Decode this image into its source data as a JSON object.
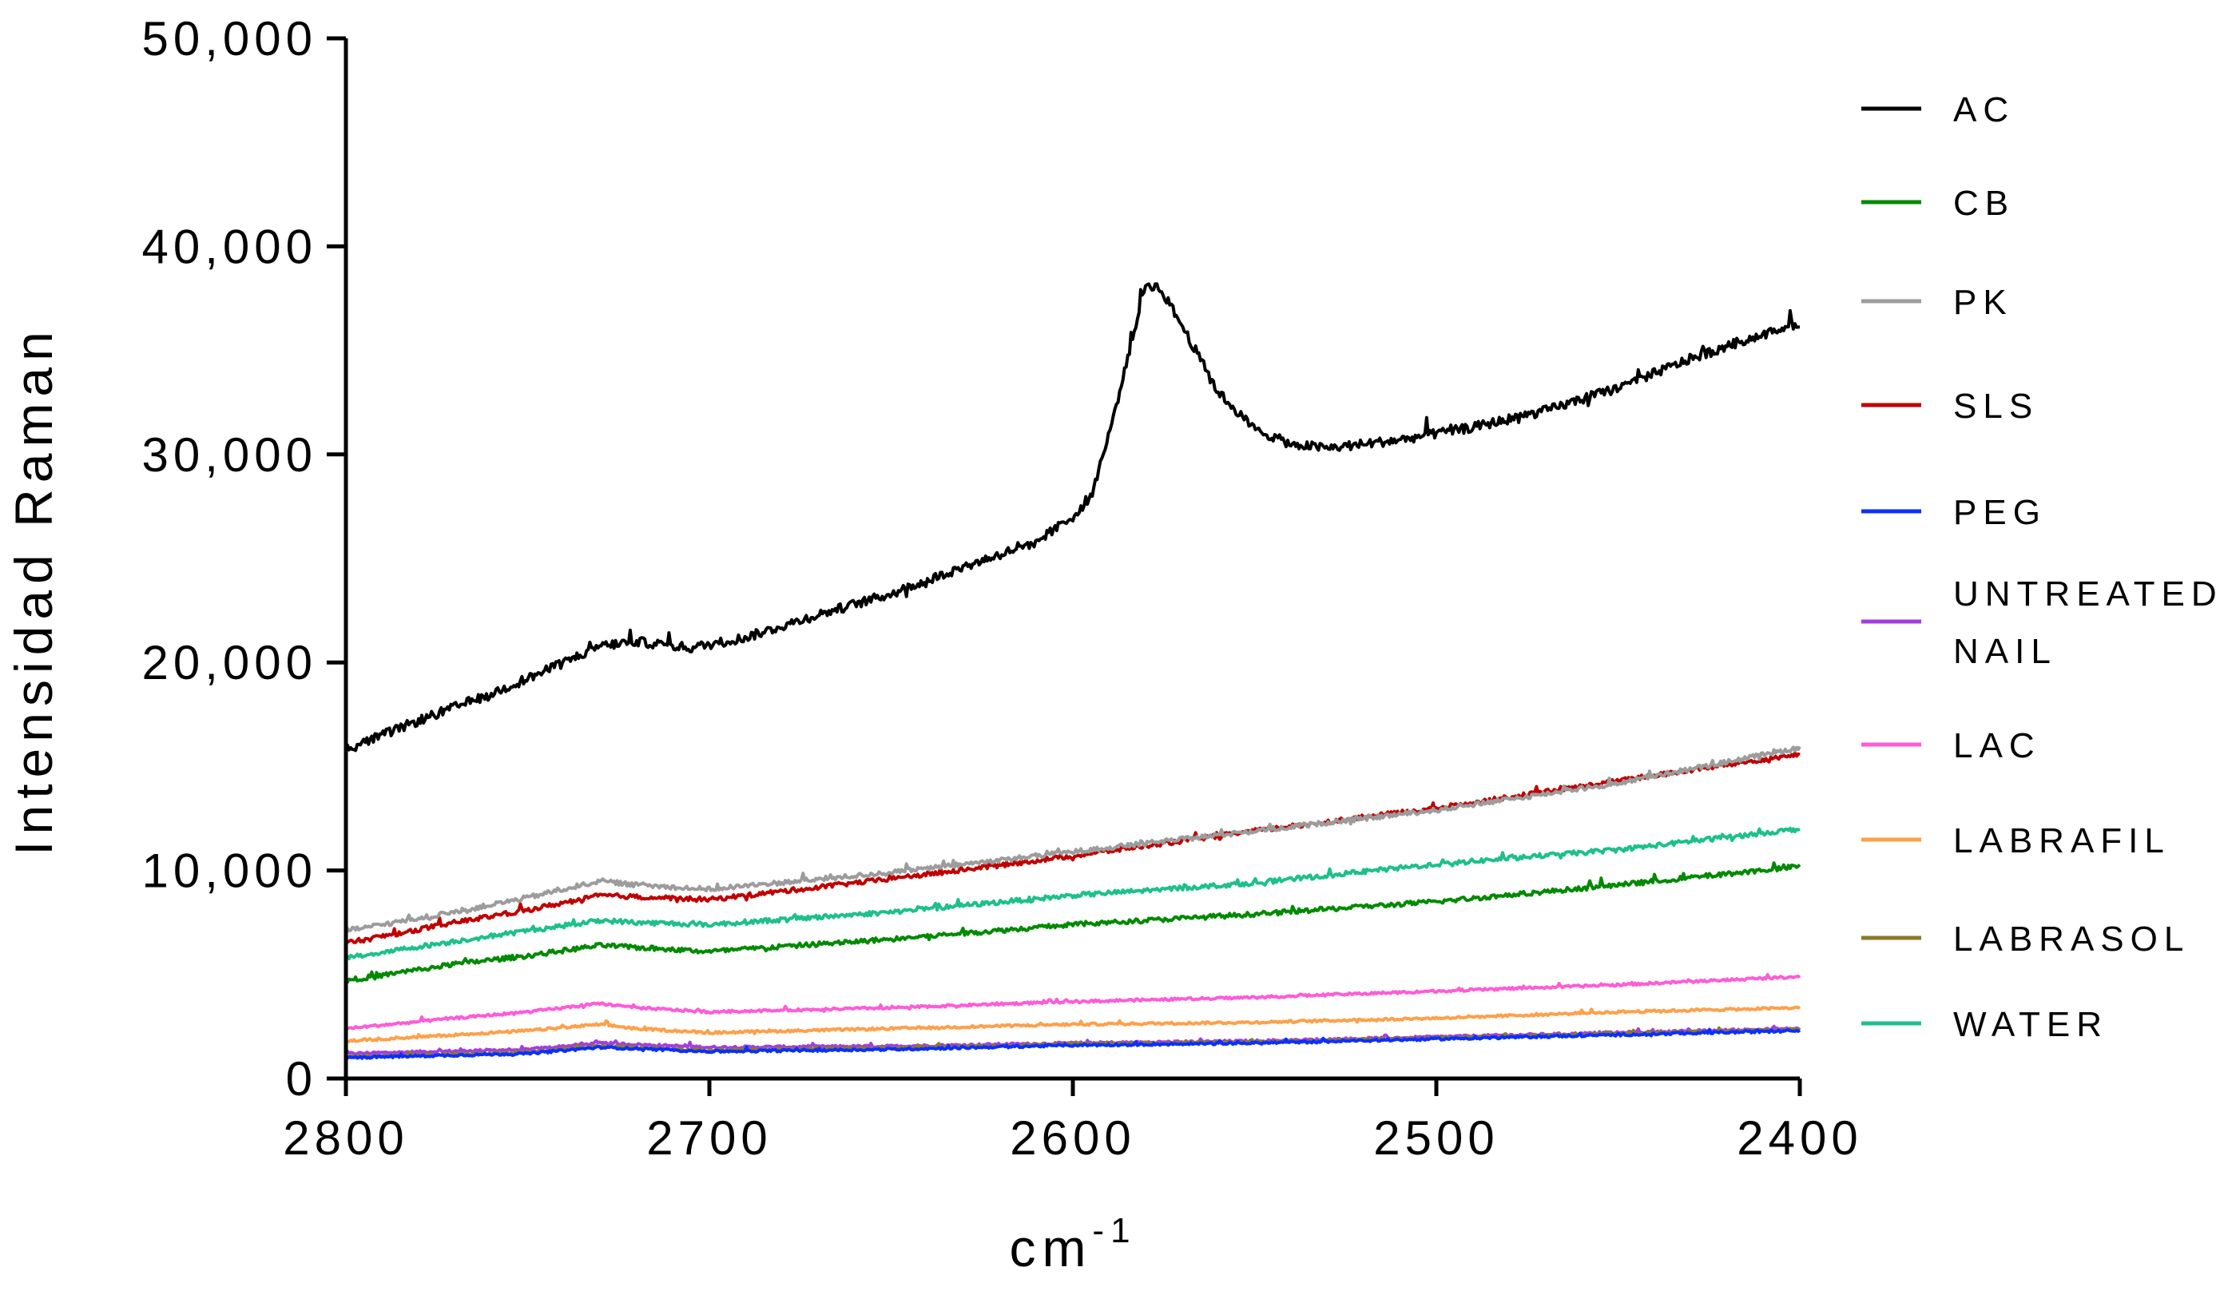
{
  "chart_data": {
    "type": "line",
    "xlabel": "cm",
    "xlabel_superscript": "-1",
    "ylabel": "Intensidad Raman",
    "xlim": [
      2800,
      2400
    ],
    "ylim": [
      0,
      50000
    ],
    "x_reversed": true,
    "x_ticks": [
      2800,
      2700,
      2600,
      2500,
      2400
    ],
    "x_tick_labels": [
      "2800",
      "2700",
      "2600",
      "2500",
      "2400"
    ],
    "y_ticks": [
      0,
      10000,
      20000,
      30000,
      40000,
      50000
    ],
    "y_tick_labels": [
      "0",
      "10,000",
      "20,000",
      "30,000",
      "40,000",
      "50,000"
    ],
    "grid": false,
    "legend_position": "right",
    "series": [
      {
        "name": "AC",
        "color": "#000000",
        "points": [
          [
            2800,
            15800
          ],
          [
            2780,
            17200
          ],
          [
            2760,
            18500
          ],
          [
            2745,
            19600
          ],
          [
            2730,
            20800
          ],
          [
            2720,
            21000
          ],
          [
            2705,
            20700
          ],
          [
            2690,
            21200
          ],
          [
            2670,
            22300
          ],
          [
            2650,
            23300
          ],
          [
            2630,
            24600
          ],
          [
            2610,
            25800
          ],
          [
            2600,
            27000
          ],
          [
            2595,
            28000
          ],
          [
            2590,
            31000
          ],
          [
            2585,
            34500
          ],
          [
            2580,
            38200
          ],
          [
            2576,
            38000
          ],
          [
            2570,
            36200
          ],
          [
            2560,
            33000
          ],
          [
            2550,
            31200
          ],
          [
            2540,
            30500
          ],
          [
            2530,
            30300
          ],
          [
            2520,
            30500
          ],
          [
            2510,
            30700
          ],
          [
            2490,
            31300
          ],
          [
            2470,
            32100
          ],
          [
            2450,
            33200
          ],
          [
            2430,
            34600
          ],
          [
            2415,
            35500
          ],
          [
            2400,
            36300
          ]
        ]
      },
      {
        "name": "CB",
        "color": "#008a00",
        "points": [
          [
            2800,
            4700
          ],
          [
            2770,
            5500
          ],
          [
            2750,
            5900
          ],
          [
            2730,
            6400
          ],
          [
            2720,
            6300
          ],
          [
            2700,
            6100
          ],
          [
            2650,
            6700
          ],
          [
            2600,
            7400
          ],
          [
            2550,
            7900
          ],
          [
            2500,
            8500
          ],
          [
            2450,
            9300
          ],
          [
            2400,
            10200
          ]
        ]
      },
      {
        "name": "PK",
        "color": "#9c9c9c",
        "points": [
          [
            2800,
            7100
          ],
          [
            2770,
            8000
          ],
          [
            2750,
            8700
          ],
          [
            2730,
            9500
          ],
          [
            2720,
            9300
          ],
          [
            2700,
            9100
          ],
          [
            2650,
            9900
          ],
          [
            2600,
            10900
          ],
          [
            2550,
            11900
          ],
          [
            2500,
            12900
          ],
          [
            2450,
            14200
          ],
          [
            2400,
            15900
          ]
        ]
      },
      {
        "name": "SLS",
        "color": "#c00000",
        "points": [
          [
            2800,
            6500
          ],
          [
            2770,
            7500
          ],
          [
            2750,
            8100
          ],
          [
            2730,
            8800
          ],
          [
            2700,
            8600
          ],
          [
            2650,
            9600
          ],
          [
            2600,
            10700
          ],
          [
            2550,
            11900
          ],
          [
            2500,
            13000
          ],
          [
            2450,
            14300
          ],
          [
            2400,
            15600
          ]
        ]
      },
      {
        "name": "PEG",
        "color": "#0a30ff",
        "points": [
          [
            2800,
            1000
          ],
          [
            2750,
            1200
          ],
          [
            2730,
            1500
          ],
          [
            2700,
            1300
          ],
          [
            2650,
            1400
          ],
          [
            2600,
            1600
          ],
          [
            2550,
            1700
          ],
          [
            2500,
            1900
          ],
          [
            2450,
            2100
          ],
          [
            2400,
            2300
          ]
        ]
      },
      {
        "name": "UNTREATED NAIL",
        "label_lines": [
          "UNTREATED",
          "NAIL"
        ],
        "color": "#a43de0",
        "points": [
          [
            2800,
            1200
          ],
          [
            2750,
            1400
          ],
          [
            2730,
            1700
          ],
          [
            2700,
            1500
          ],
          [
            2650,
            1550
          ],
          [
            2600,
            1700
          ],
          [
            2550,
            1800
          ],
          [
            2500,
            2000
          ],
          [
            2450,
            2200
          ],
          [
            2400,
            2400
          ]
        ]
      },
      {
        "name": "LAC",
        "color": "#ff5cd6",
        "points": [
          [
            2800,
            2400
          ],
          [
            2770,
            2900
          ],
          [
            2750,
            3200
          ],
          [
            2730,
            3600
          ],
          [
            2720,
            3400
          ],
          [
            2700,
            3200
          ],
          [
            2650,
            3400
          ],
          [
            2600,
            3700
          ],
          [
            2550,
            3900
          ],
          [
            2500,
            4200
          ],
          [
            2450,
            4500
          ],
          [
            2400,
            4900
          ]
        ]
      },
      {
        "name": "LABRAFIL",
        "color": "#ffa04a",
        "points": [
          [
            2800,
            1800
          ],
          [
            2770,
            2100
          ],
          [
            2750,
            2300
          ],
          [
            2730,
            2600
          ],
          [
            2720,
            2400
          ],
          [
            2700,
            2200
          ],
          [
            2650,
            2400
          ],
          [
            2600,
            2600
          ],
          [
            2550,
            2700
          ],
          [
            2500,
            2900
          ],
          [
            2450,
            3200
          ],
          [
            2400,
            3400
          ]
        ]
      },
      {
        "name": "LABRASOL",
        "color": "#8a7a2a",
        "points": [
          [
            2800,
            1050
          ],
          [
            2750,
            1250
          ],
          [
            2730,
            1550
          ],
          [
            2700,
            1350
          ],
          [
            2650,
            1450
          ],
          [
            2600,
            1650
          ],
          [
            2550,
            1750
          ],
          [
            2500,
            1950
          ],
          [
            2450,
            2150
          ],
          [
            2400,
            2350
          ]
        ]
      },
      {
        "name": "WATER",
        "color": "#1ec08a",
        "points": [
          [
            2800,
            5800
          ],
          [
            2770,
            6600
          ],
          [
            2750,
            7100
          ],
          [
            2730,
            7600
          ],
          [
            2720,
            7500
          ],
          [
            2700,
            7400
          ],
          [
            2650,
            8000
          ],
          [
            2600,
            8800
          ],
          [
            2550,
            9400
          ],
          [
            2500,
            10300
          ],
          [
            2450,
            11000
          ],
          [
            2400,
            12000
          ]
        ]
      }
    ]
  }
}
